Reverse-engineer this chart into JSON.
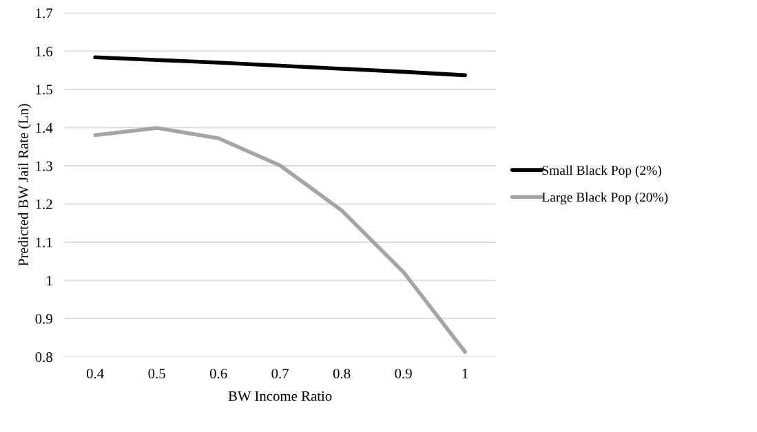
{
  "chart_data": {
    "type": "line",
    "xlabel": "BW Income Ratio",
    "ylabel": "Predicted BW Jail Rate (Ln)",
    "categories": [
      "0.4",
      "0.5",
      "0.6",
      "0.7",
      "0.8",
      "0.9",
      "1"
    ],
    "series": [
      {
        "name": "Small Black Pop (2%)",
        "color": "#000000",
        "values": [
          1.584,
          1.577,
          1.57,
          1.562,
          1.554,
          1.546,
          1.537
        ]
      },
      {
        "name": "Large Black Pop (20%)",
        "color": "#a5a5a5",
        "values": [
          1.38,
          1.399,
          1.372,
          1.301,
          1.183,
          1.022,
          0.813
        ]
      }
    ],
    "ylim": [
      0.8,
      1.7
    ],
    "yticks": [
      0.8,
      0.9,
      {
        "value": 1,
        "label": "1"
      },
      1.1,
      1.2,
      1.3,
      1.4,
      1.5,
      1.6,
      1.7
    ],
    "grid": "y",
    "legend": "right",
    "marker": "none",
    "line_style": "solid"
  }
}
